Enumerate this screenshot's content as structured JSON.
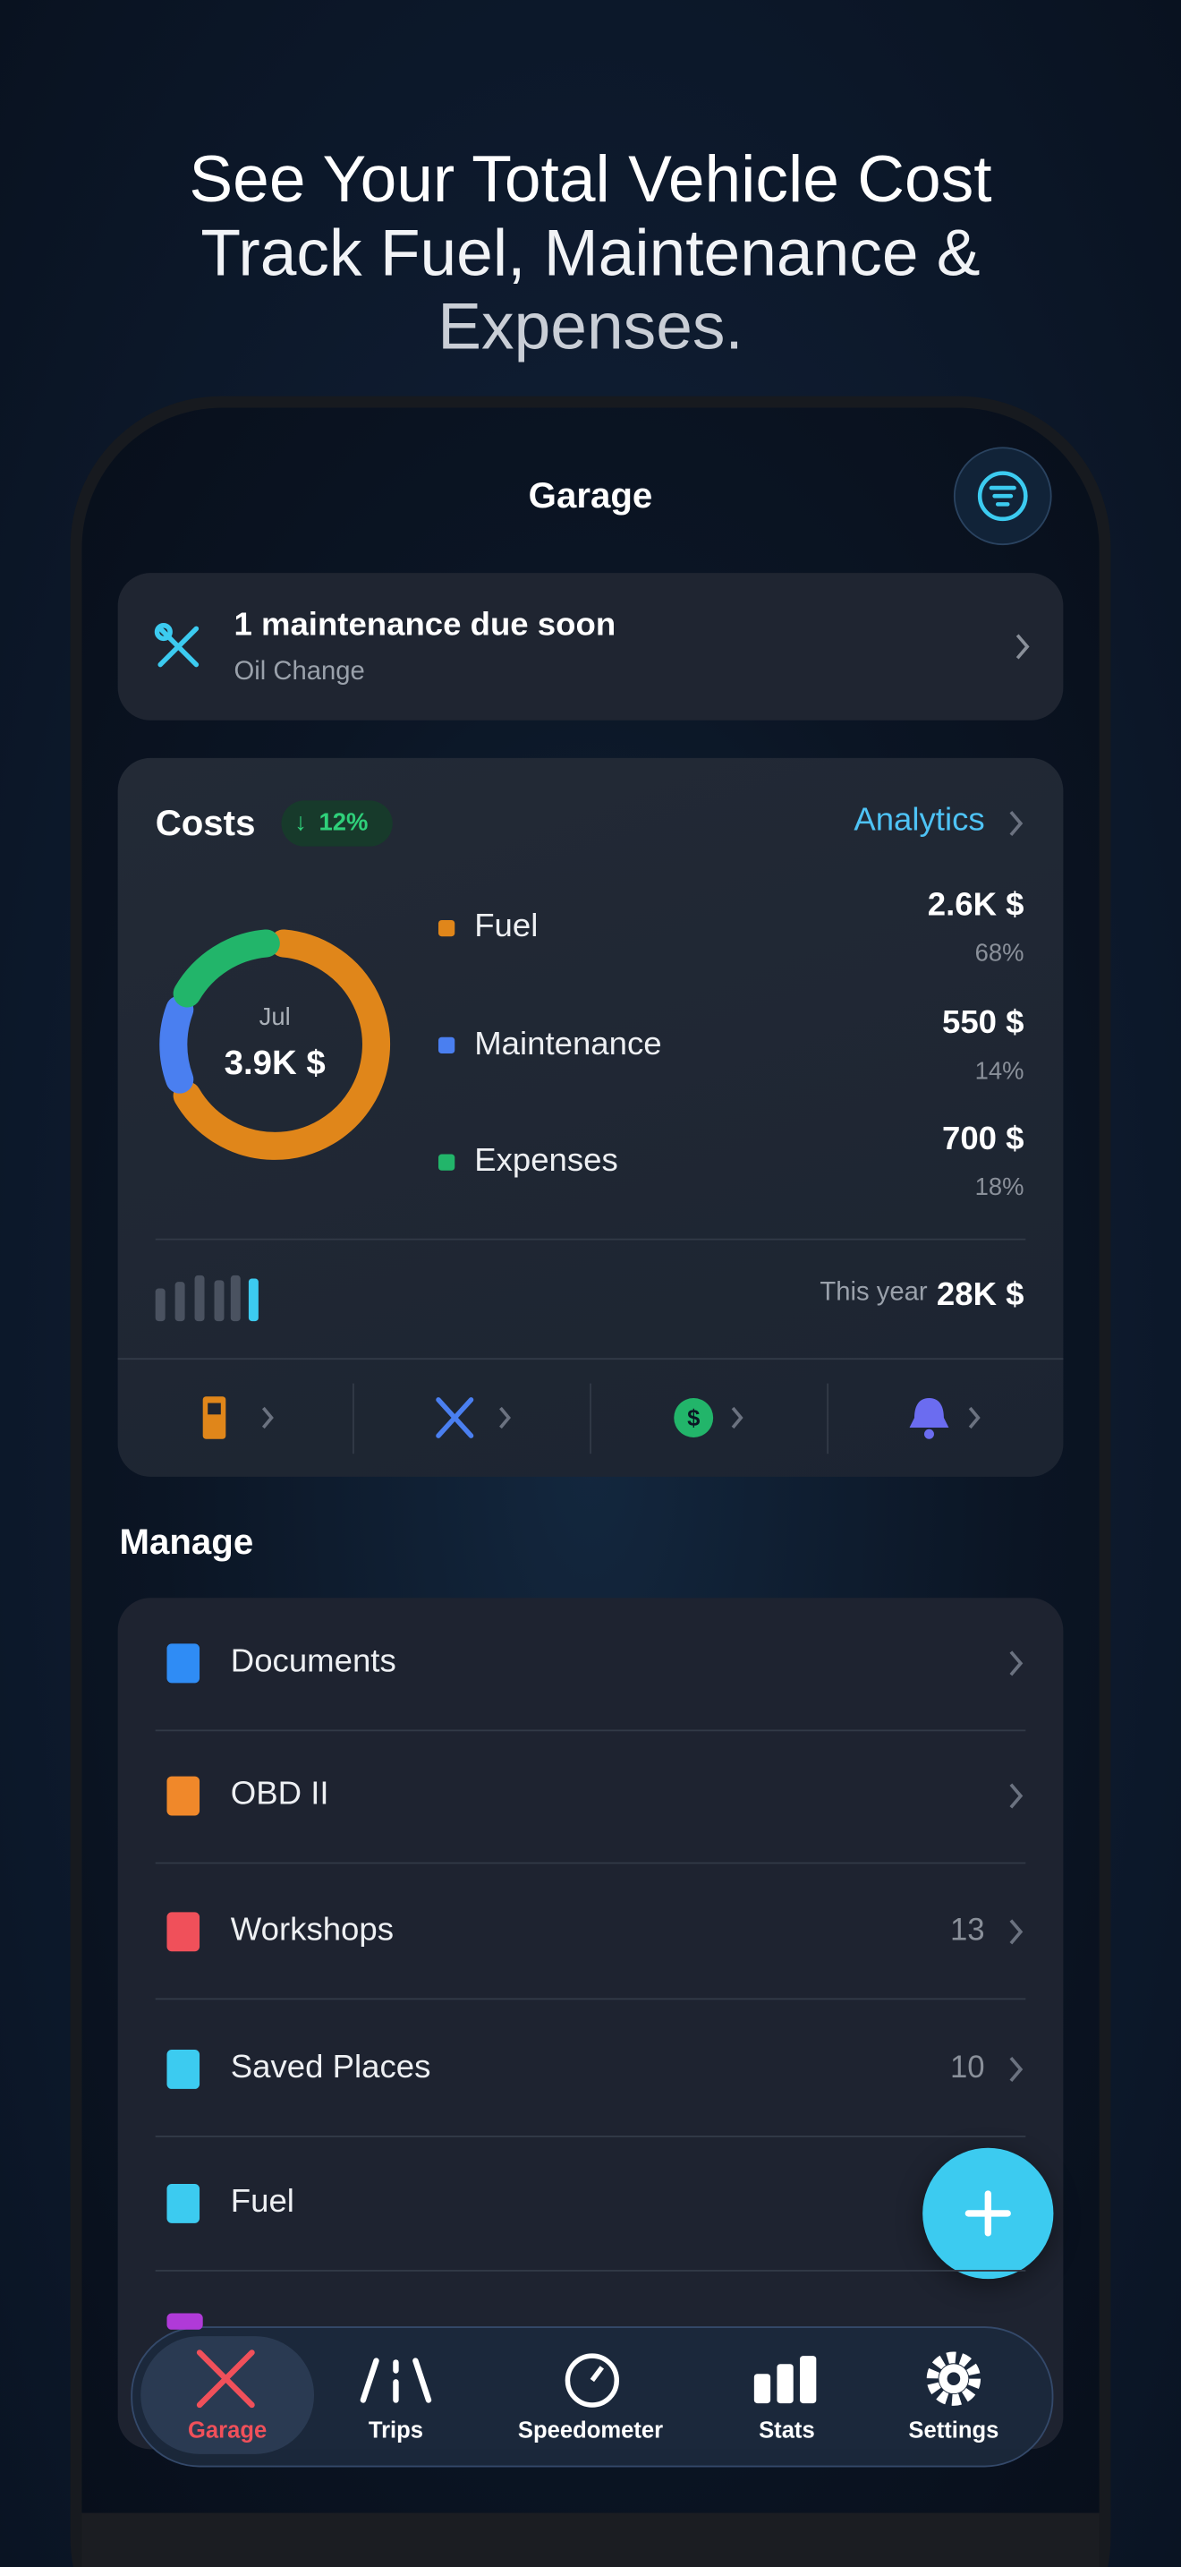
{
  "headline": [
    "See Your Total Vehicle Cost",
    "Track Fuel, Maintenance &",
    "Expenses."
  ],
  "screen": {
    "title": "Garage"
  },
  "alert": {
    "title": "1 maintenance due soon",
    "subtitle": "Oil Change"
  },
  "costs": {
    "title": "Costs",
    "change": "12%",
    "link": "Analytics",
    "month": "Jul",
    "total": "3.9K $",
    "items": [
      {
        "name": "Fuel",
        "amount": "2.6K $",
        "share": 68,
        "share_label": "68%",
        "color": "#e0861a"
      },
      {
        "name": "Maintenance",
        "amount": "550 $",
        "share": 14,
        "share_label": "14%",
        "color": "#4a7ff0"
      },
      {
        "name": "Expenses",
        "amount": "700 $",
        "share": 18,
        "share_label": "18%",
        "color": "#22b56a"
      }
    ],
    "year_label": "This year",
    "year_total": "28K $"
  },
  "manage": {
    "title": "Manage",
    "items": [
      {
        "label": "Documents"
      },
      {
        "label": "OBD II"
      },
      {
        "label": "Workshops",
        "count": 13
      },
      {
        "label": "Saved Places",
        "count": 10
      },
      {
        "label": "Fuel"
      }
    ]
  },
  "tabs": [
    "Garage",
    "Trips",
    "Speedometer",
    "Stats",
    "Settings"
  ]
}
